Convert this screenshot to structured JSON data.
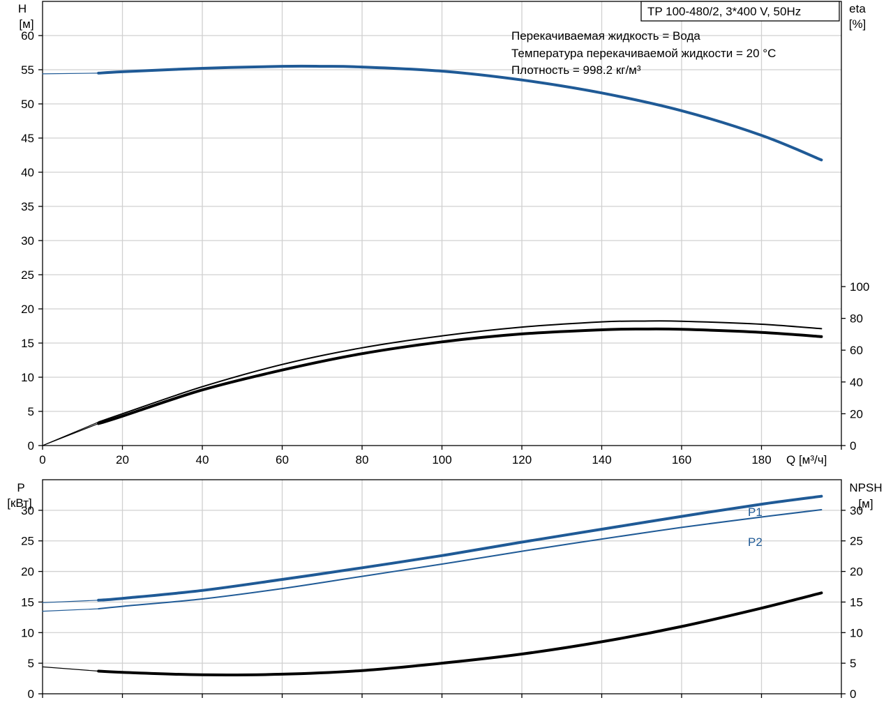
{
  "chart_data": [
    {
      "type": "line",
      "title": "TP 100-480/2, 3*400 V, 50Hz",
      "annotations": [
        "Перекачиваемая жидкость = Вода",
        "Температура перекачиваемой жидкости = 20 °C",
        "Плотность = 998.2 кг/м³"
      ],
      "xlabel": "Q [м³/ч]",
      "ylabel_top": "H",
      "ylabel_unit": "[м]",
      "y2label_top": "eta",
      "y2label_unit": "[%]",
      "xlim": [
        0,
        200
      ],
      "ylim": [
        0,
        65
      ],
      "y2lim": [
        0,
        100
      ],
      "x_ticks": [
        "0",
        "20",
        "40",
        "60",
        "80",
        "100",
        "120",
        "140",
        "160",
        "180"
      ],
      "y_ticks": [
        "0",
        "5",
        "10",
        "15",
        "20",
        "25",
        "30",
        "35",
        "40",
        "45",
        "50",
        "55",
        "60"
      ],
      "y2_ticks": [
        "0",
        "20",
        "40",
        "60",
        "80",
        "100"
      ],
      "grid": true,
      "series": [
        {
          "key": "h_ext",
          "axis": "left",
          "color": "#1f5a96",
          "width": 1.2,
          "x": [
            0,
            14
          ],
          "y": [
            54.4,
            54.5
          ]
        },
        {
          "key": "h",
          "axis": "left",
          "color": "#1f5a96",
          "width": 4,
          "x": [
            14,
            20,
            40,
            60,
            70,
            80,
            100,
            120,
            140,
            160,
            180,
            195
          ],
          "y": [
            54.5,
            54.7,
            55.2,
            55.5,
            55.5,
            55.4,
            54.8,
            53.5,
            51.6,
            49.0,
            45.4,
            41.8
          ]
        },
        {
          "key": "eta1_ext",
          "axis": "right",
          "color": "#000000",
          "width": 1.2,
          "x": [
            0,
            14
          ],
          "y": [
            0,
            14.8
          ]
        },
        {
          "key": "eta1",
          "axis": "right",
          "color": "#000000",
          "width": 2,
          "x": [
            14,
            20,
            40,
            60,
            80,
            100,
            120,
            140,
            150,
            160,
            180,
            195
          ],
          "y": [
            14.8,
            20.0,
            37.0,
            51.0,
            61.5,
            69.0,
            74.5,
            77.8,
            78.3,
            78.2,
            76.3,
            73.5
          ]
        },
        {
          "key": "eta2_ext",
          "axis": "right",
          "color": "#000000",
          "width": 1.2,
          "x": [
            0,
            14
          ],
          "y": [
            0,
            13.8
          ]
        },
        {
          "key": "eta2",
          "axis": "right",
          "color": "#000000",
          "width": 4,
          "x": [
            14,
            20,
            40,
            60,
            80,
            100,
            120,
            140,
            150,
            160,
            180,
            195
          ],
          "y": [
            13.8,
            18.5,
            35.0,
            47.5,
            57.8,
            65.2,
            70.2,
            72.8,
            73.3,
            73.1,
            71.2,
            68.5
          ]
        }
      ]
    },
    {
      "type": "line",
      "xlim": [
        0,
        200
      ],
      "ylabel_top": "P",
      "ylabel_unit": "[кВт]",
      "y2label_top": "NPSH",
      "y2label_unit": "[м]",
      "ylim": [
        0,
        35
      ],
      "y2lim": [
        0,
        35
      ],
      "y_ticks": [
        "0",
        "5",
        "10",
        "15",
        "20",
        "25",
        "30"
      ],
      "y2_ticks": [
        "0",
        "5",
        "10",
        "15",
        "20",
        "25",
        "30"
      ],
      "grid": true,
      "series": [
        {
          "key": "p1_ext",
          "axis": "left",
          "color": "#1f5a96",
          "width": 1.2,
          "x": [
            0,
            14
          ],
          "y": [
            14.9,
            15.3
          ]
        },
        {
          "key": "p1",
          "name": "P1",
          "axis": "left",
          "color": "#1f5a96",
          "width": 4,
          "x": [
            14,
            20,
            40,
            60,
            80,
            100,
            120,
            140,
            160,
            180,
            195
          ],
          "y": [
            15.3,
            15.6,
            16.9,
            18.7,
            20.6,
            22.6,
            24.8,
            26.9,
            29.0,
            31.0,
            32.3
          ]
        },
        {
          "key": "p2_ext",
          "axis": "left",
          "color": "#1f5a96",
          "width": 1.2,
          "x": [
            0,
            14
          ],
          "y": [
            13.5,
            13.9
          ]
        },
        {
          "key": "p2",
          "name": "P2",
          "axis": "left",
          "color": "#1f5a96",
          "width": 2,
          "x": [
            14,
            20,
            40,
            60,
            80,
            100,
            120,
            140,
            160,
            180,
            195
          ],
          "y": [
            13.9,
            14.3,
            15.5,
            17.2,
            19.2,
            21.2,
            23.3,
            25.3,
            27.2,
            28.9,
            30.1
          ]
        },
        {
          "key": "npsh_ext",
          "axis": "right",
          "color": "#000000",
          "width": 1.2,
          "x": [
            0,
            14
          ],
          "y": [
            4.4,
            3.7
          ]
        },
        {
          "key": "npsh",
          "axis": "right",
          "color": "#000000",
          "width": 4,
          "x": [
            14,
            20,
            40,
            60,
            80,
            100,
            120,
            140,
            160,
            180,
            195
          ],
          "y": [
            3.7,
            3.5,
            3.1,
            3.2,
            3.8,
            5.0,
            6.5,
            8.5,
            11.0,
            14.0,
            16.5
          ]
        }
      ]
    }
  ]
}
